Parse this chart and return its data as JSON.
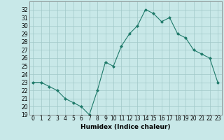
{
  "x": [
    0,
    1,
    2,
    3,
    4,
    5,
    6,
    7,
    8,
    9,
    10,
    11,
    12,
    13,
    14,
    15,
    16,
    17,
    18,
    19,
    20,
    21,
    22,
    23
  ],
  "y": [
    23,
    23,
    22.5,
    22,
    21,
    20.5,
    20,
    19,
    22,
    25.5,
    25,
    27.5,
    29,
    30,
    32,
    31.5,
    30.5,
    31,
    29,
    28.5,
    27,
    26.5,
    26,
    23
  ],
  "xlabel": "Humidex (Indice chaleur)",
  "ylim": [
    19,
    33
  ],
  "xlim": [
    -0.5,
    23.5
  ],
  "yticks": [
    19,
    20,
    21,
    22,
    23,
    24,
    25,
    26,
    27,
    28,
    29,
    30,
    31,
    32
  ],
  "xticks": [
    0,
    1,
    2,
    3,
    4,
    5,
    6,
    7,
    8,
    9,
    10,
    11,
    12,
    13,
    14,
    15,
    16,
    17,
    18,
    19,
    20,
    21,
    22,
    23
  ],
  "line_color": "#1f7a6a",
  "bg_color": "#c8e8e8",
  "grid_color": "#a0c8c8",
  "tick_fontsize": 5.5,
  "label_fontsize": 6.5
}
